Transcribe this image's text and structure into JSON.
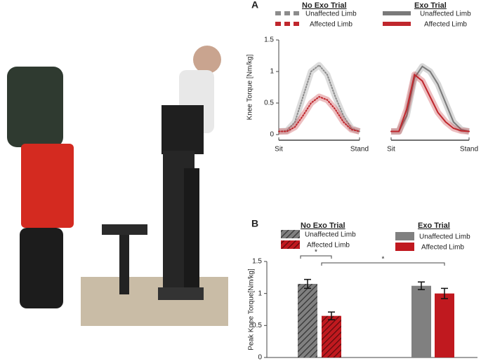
{
  "chart_data": [
    {
      "type": "line",
      "title": "A",
      "legend_title": "No Exo Trial",
      "line_style": "dotted",
      "ylabel": "Knee Torque [Nm/kg]",
      "x": [
        0,
        10,
        20,
        30,
        40,
        50,
        60,
        70,
        80,
        90,
        100
      ],
      "xlim": [
        0,
        100
      ],
      "xticks": [
        {
          "value": 0,
          "label": "Sit"
        },
        {
          "value": 100,
          "label": "Stand"
        }
      ],
      "ylim": [
        0,
        1.5
      ],
      "yticks": [
        0,
        0.5,
        1,
        1.5
      ],
      "series": [
        {
          "name": "Unaffected Limb",
          "color": "#8c8c8c",
          "values": [
            0.05,
            0.06,
            0.2,
            0.6,
            1.0,
            1.1,
            0.95,
            0.6,
            0.3,
            0.1,
            0.05
          ]
        },
        {
          "name": "Affected Limb",
          "color": "#c0272d",
          "values": [
            0.05,
            0.05,
            0.12,
            0.3,
            0.5,
            0.6,
            0.55,
            0.4,
            0.2,
            0.08,
            0.05
          ]
        }
      ]
    },
    {
      "type": "line",
      "legend_title": "Exo Trial",
      "line_style": "solid",
      "x": [
        0,
        10,
        20,
        30,
        40,
        50,
        60,
        70,
        80,
        90,
        100
      ],
      "xlim": [
        0,
        100
      ],
      "xticks": [
        {
          "value": 0,
          "label": "Sit"
        },
        {
          "value": 100,
          "label": "Stand"
        }
      ],
      "ylim": [
        0,
        1.5
      ],
      "series": [
        {
          "name": "Unaffected Limb",
          "color": "#7a7a7a",
          "values": [
            0.05,
            0.05,
            0.3,
            0.9,
            1.08,
            1.0,
            0.8,
            0.5,
            0.2,
            0.08,
            0.05
          ]
        },
        {
          "name": "Affected Limb",
          "color": "#c0272d",
          "values": [
            0.05,
            0.05,
            0.4,
            0.95,
            0.85,
            0.6,
            0.35,
            0.2,
            0.1,
            0.06,
            0.05
          ]
        }
      ]
    },
    {
      "type": "bar",
      "title": "B",
      "ylabel": "Peak Knee Torque[Nm/kg]",
      "categories": [
        "No Exo Trial",
        "Exo Trial"
      ],
      "hatched": [
        true,
        false
      ],
      "ylim": [
        0,
        1.5
      ],
      "yticks": [
        0,
        0.5,
        1,
        1.5
      ],
      "series": [
        {
          "name": "Unaffected Limb",
          "color": "#808080",
          "values": [
            1.15,
            1.12
          ],
          "errors": [
            0.07,
            0.06
          ]
        },
        {
          "name": "Affected Limb",
          "color": "#c0191f",
          "values": [
            0.65,
            1.0
          ],
          "errors": [
            0.06,
            0.08
          ]
        }
      ],
      "annotations": [
        "*",
        "*"
      ]
    }
  ]
}
